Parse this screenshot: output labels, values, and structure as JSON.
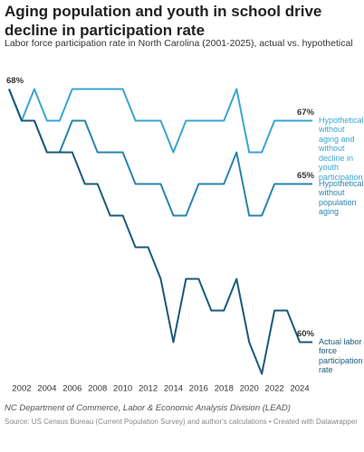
{
  "chart_data": {
    "type": "line",
    "title": "Aging population and youth in school drive decline in participation rate",
    "subtitle": "Labor force participation rate in North Carolina (2001-2025), actual vs. hypothetical",
    "x": [
      2001,
      2002,
      2003,
      2004,
      2005,
      2006,
      2007,
      2008,
      2009,
      2010,
      2011,
      2012,
      2013,
      2014,
      2015,
      2016,
      2017,
      2018,
      2019,
      2020,
      2021,
      2022,
      2023,
      2024,
      2025
    ],
    "xlim": [
      2001,
      2025
    ],
    "xticks": [
      2002,
      2004,
      2006,
      2008,
      2010,
      2012,
      2014,
      2016,
      2018,
      2020,
      2022,
      2024
    ],
    "ylim": [
      58.5,
      68.5
    ],
    "series": [
      {
        "name": "Hypothetical: without aging and without decline in youth participation",
        "color": "#3ba5d1",
        "values": [
          68,
          67,
          68,
          67,
          67,
          68,
          68,
          68,
          68,
          68,
          67,
          67,
          67,
          66,
          67,
          67,
          67,
          67,
          68,
          66,
          66,
          67,
          67,
          67,
          67
        ],
        "value_labels": [
          null,
          null,
          null,
          null,
          null,
          null,
          null,
          null,
          null,
          null,
          null,
          null,
          null,
          null,
          null,
          null,
          null,
          null,
          null,
          null,
          null,
          null,
          null,
          null,
          "67%"
        ]
      },
      {
        "name": "Hypothetical: without population aging",
        "color": "#2a85ae",
        "values": [
          68,
          67,
          67,
          66,
          66,
          67,
          67,
          66,
          66,
          66,
          65,
          65,
          65,
          64,
          64,
          65,
          65,
          65,
          66,
          64,
          64,
          65,
          65,
          65,
          65
        ],
        "value_labels": [
          null,
          null,
          null,
          null,
          null,
          null,
          null,
          null,
          null,
          null,
          null,
          null,
          null,
          null,
          null,
          null,
          null,
          null,
          null,
          null,
          null,
          null,
          null,
          null,
          "65%"
        ]
      },
      {
        "name": "Actual labor force participation rate",
        "color": "#1b5b79",
        "values": [
          68,
          67,
          67,
          66,
          66,
          66,
          65,
          65,
          64,
          64,
          63,
          63,
          62,
          60,
          62,
          62,
          61,
          61,
          62,
          60,
          59,
          61,
          61,
          60,
          60
        ],
        "value_labels": [
          "68%",
          null,
          null,
          null,
          null,
          null,
          null,
          null,
          null,
          null,
          null,
          null,
          null,
          null,
          null,
          null,
          null,
          null,
          null,
          null,
          null,
          null,
          null,
          null,
          "60%"
        ]
      }
    ],
    "note": "NC Department of Commerce, Labor & Economic Analysis Division (LEAD)",
    "source": "Source: US Census Bureau (Current Population Survey) and author's calculations • Created with Datawrapper"
  }
}
